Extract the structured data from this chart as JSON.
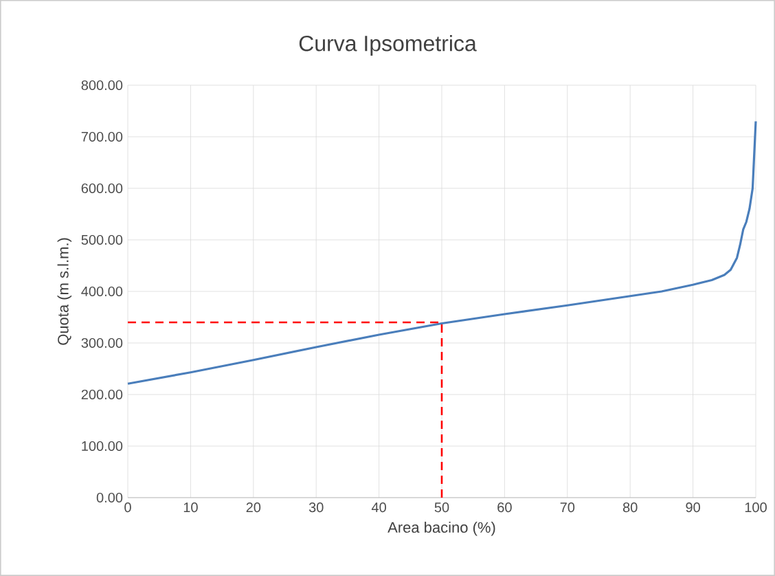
{
  "chart_data": {
    "type": "line",
    "title": "Curva Ipsometrica",
    "xlabel": "Area bacino (%)",
    "ylabel": "Quota (m s.l.m.)",
    "xlim": [
      0,
      100
    ],
    "xticks": [
      0,
      10,
      20,
      30,
      40,
      50,
      60,
      70,
      80,
      90,
      100
    ],
    "ylim": [
      0,
      800
    ],
    "yticks": [
      {
        "value": 0,
        "label": "0.00"
      },
      {
        "value": 100,
        "label": "100.00"
      },
      {
        "value": 200,
        "label": "200.00"
      },
      {
        "value": 300,
        "label": "300.00"
      },
      {
        "value": 400,
        "label": "400.00"
      },
      {
        "value": 500,
        "label": "500.00"
      },
      {
        "value": 600,
        "label": "600.00"
      },
      {
        "value": 700,
        "label": "700.00"
      },
      {
        "value": 800,
        "label": "800.00"
      }
    ],
    "grid": true,
    "marker": "none",
    "series": [
      {
        "color": "#4a7ebb",
        "line_style": "solid",
        "x": [
          0,
          10,
          20,
          30,
          40,
          50,
          60,
          70,
          80,
          85,
          90,
          93,
          95,
          96,
          97,
          97.5,
          98,
          98.5,
          99,
          99.5,
          100
        ],
        "values": [
          221,
          243,
          267,
          292,
          316,
          338,
          356,
          373,
          391,
          400,
          413,
          422,
          432,
          442,
          465,
          490,
          520,
          535,
          560,
          600,
          730
        ]
      },
      {
        "color": "#ff0000",
        "line_style": "dashed",
        "x": [
          0,
          50,
          50
        ],
        "values": [
          340,
          340,
          0
        ]
      }
    ]
  }
}
